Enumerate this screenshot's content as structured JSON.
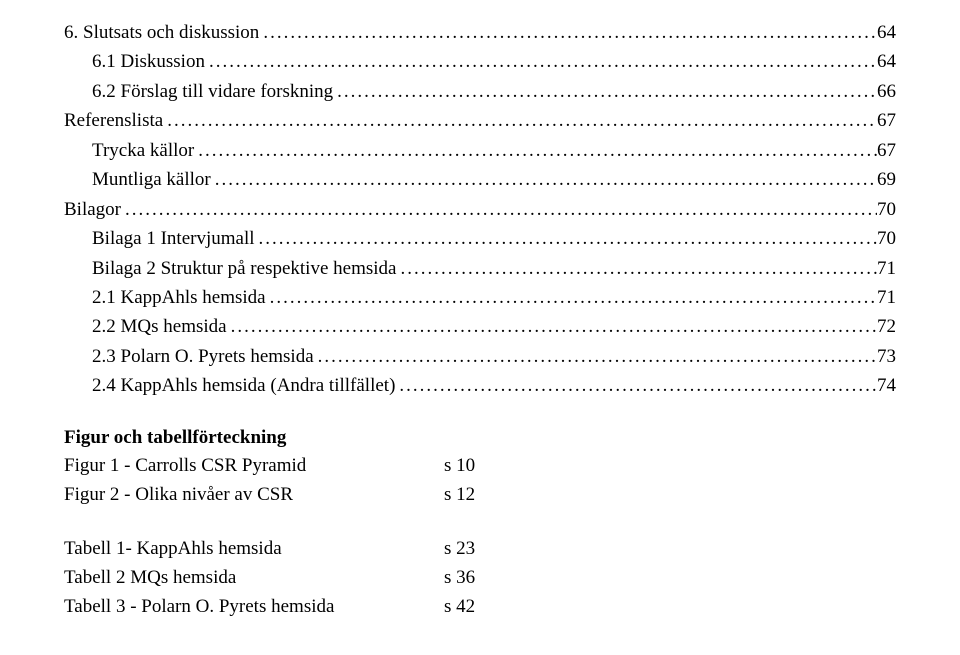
{
  "toc": [
    {
      "indent": 0,
      "label": "6. Slutsats och diskussion",
      "page": "64"
    },
    {
      "indent": 1,
      "label": "6.1 Diskussion",
      "page": "64"
    },
    {
      "indent": 1,
      "label": "6.2 Förslag till vidare forskning",
      "page": "66"
    },
    {
      "indent": 0,
      "label": "Referenslista",
      "page": "67"
    },
    {
      "indent": 1,
      "label": "Trycka källor",
      "page": "67"
    },
    {
      "indent": 1,
      "label": "Muntliga källor",
      "page": "69"
    },
    {
      "indent": 0,
      "label": "Bilagor",
      "page": "70"
    },
    {
      "indent": 1,
      "label": "Bilaga 1 Intervjumall",
      "page": "70"
    },
    {
      "indent": 1,
      "label": "Bilaga 2 Struktur på respektive hemsida",
      "page": "71"
    },
    {
      "indent": 1,
      "label": "2.1 KappAhls hemsida",
      "page": "71"
    },
    {
      "indent": 1,
      "label": "2.2 MQs hemsida",
      "page": "72"
    },
    {
      "indent": 1,
      "label": "2.3 Polarn O. Pyrets hemsida",
      "page": "73"
    },
    {
      "indent": 1,
      "label": "2.4 KappAhls hemsida (Andra tillfället)",
      "page": "74"
    }
  ],
  "figSectionTitle": "Figur och tabellförteckning",
  "figures": [
    {
      "label": "Figur 1 - Carrolls CSR Pyramid",
      "page": "s 10"
    },
    {
      "label": "Figur 2 - Olika nivåer av CSR",
      "page": "s 12"
    }
  ],
  "tables": [
    {
      "label": "Tabell 1- KappAhls hemsida",
      "page": "s 23"
    },
    {
      "label": "Tabell 2 MQs hemsida",
      "page": "s 36"
    },
    {
      "label": "Tabell 3 - Polarn O. Pyrets hemsida",
      "page": "s 42"
    }
  ]
}
